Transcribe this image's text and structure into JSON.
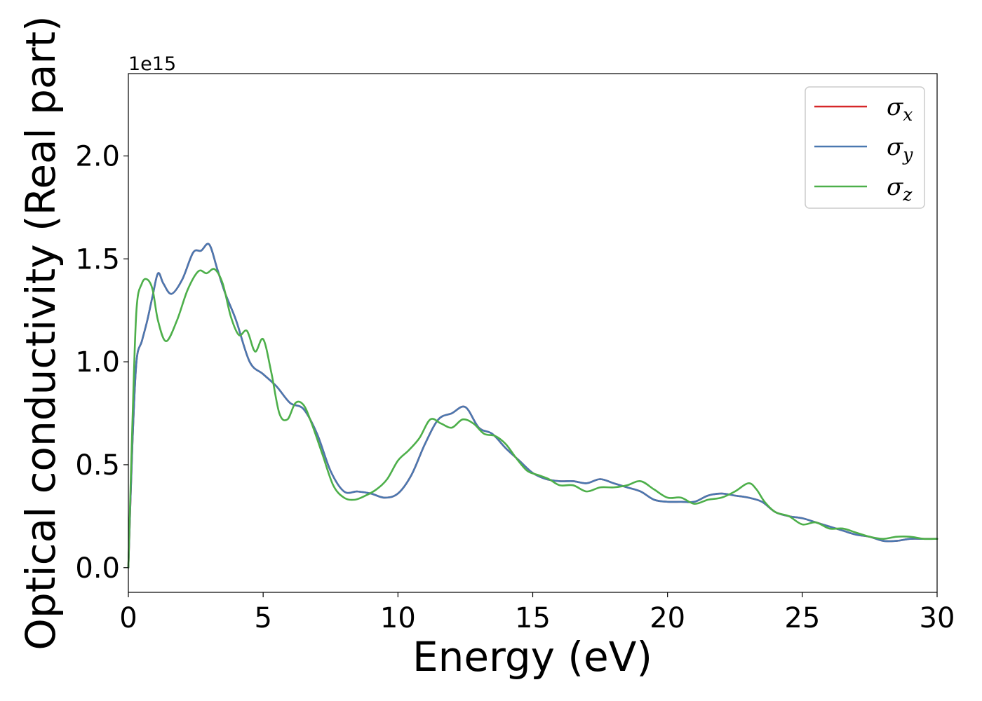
{
  "chart_data": {
    "type": "line",
    "xlabel": "Energy (eV)",
    "ylabel": "Optical conductivity (Real part)",
    "y_offset_text": "1e15",
    "xlim": [
      0,
      30
    ],
    "ylim": [
      -0.12,
      2.4
    ],
    "xticks": [
      0,
      5,
      10,
      15,
      20,
      25,
      30
    ],
    "xtick_labels": [
      "0",
      "5",
      "10",
      "15",
      "20",
      "25",
      "30"
    ],
    "yticks": [
      0.0,
      0.5,
      1.0,
      1.5,
      2.0
    ],
    "ytick_labels": [
      "0.0",
      "0.5",
      "1.0",
      "1.5",
      "2.0"
    ],
    "grid": false,
    "legend_position": "top-right",
    "series": [
      {
        "name": "σ",
        "subscript": "x",
        "color": "#d62728",
        "x": [
          0,
          0.15,
          0.3,
          0.5,
          0.7,
          0.9,
          1.1,
          1.3,
          1.6,
          2.0,
          2.4,
          2.7,
          3.0,
          3.3,
          3.6,
          4.0,
          4.5,
          5.0,
          5.5,
          6.0,
          6.5,
          7.0,
          7.5,
          8.0,
          8.5,
          9.0,
          9.5,
          10.0,
          10.5,
          11.0,
          11.5,
          12.0,
          12.5,
          13.0,
          13.5,
          14.0,
          14.5,
          15.0,
          15.5,
          16.0,
          16.5,
          17.0,
          17.5,
          18.0,
          18.5,
          19.0,
          19.5,
          20.0,
          20.5,
          21.0,
          21.5,
          22.0,
          22.5,
          23.0,
          23.5,
          24.0,
          24.5,
          25.0,
          25.5,
          26.0,
          26.5,
          27.0,
          27.5,
          28.0,
          28.5,
          29.0,
          29.5,
          30.0
        ],
        "y": [
          0.0,
          0.6,
          1.0,
          1.1,
          1.2,
          1.32,
          1.43,
          1.38,
          1.33,
          1.4,
          1.53,
          1.54,
          1.57,
          1.45,
          1.33,
          1.2,
          1.0,
          0.94,
          0.88,
          0.8,
          0.77,
          0.65,
          0.47,
          0.37,
          0.37,
          0.36,
          0.34,
          0.36,
          0.45,
          0.6,
          0.72,
          0.75,
          0.78,
          0.68,
          0.65,
          0.58,
          0.52,
          0.46,
          0.43,
          0.42,
          0.42,
          0.41,
          0.43,
          0.41,
          0.39,
          0.37,
          0.33,
          0.32,
          0.32,
          0.32,
          0.35,
          0.36,
          0.35,
          0.34,
          0.32,
          0.27,
          0.25,
          0.24,
          0.22,
          0.2,
          0.18,
          0.16,
          0.15,
          0.13,
          0.13,
          0.14,
          0.14,
          0.14
        ]
      },
      {
        "name": "σ",
        "subscript": "y",
        "color": "#4a78b0",
        "x": [
          0,
          0.15,
          0.3,
          0.5,
          0.7,
          0.9,
          1.1,
          1.3,
          1.6,
          2.0,
          2.4,
          2.7,
          3.0,
          3.3,
          3.6,
          4.0,
          4.5,
          5.0,
          5.5,
          6.0,
          6.5,
          7.0,
          7.5,
          8.0,
          8.5,
          9.0,
          9.5,
          10.0,
          10.5,
          11.0,
          11.5,
          12.0,
          12.5,
          13.0,
          13.5,
          14.0,
          14.5,
          15.0,
          15.5,
          16.0,
          16.5,
          17.0,
          17.5,
          18.0,
          18.5,
          19.0,
          19.5,
          20.0,
          20.5,
          21.0,
          21.5,
          22.0,
          22.5,
          23.0,
          23.5,
          24.0,
          24.5,
          25.0,
          25.5,
          26.0,
          26.5,
          27.0,
          27.5,
          28.0,
          28.5,
          29.0,
          29.5,
          30.0
        ],
        "y": [
          0.0,
          0.6,
          1.0,
          1.1,
          1.2,
          1.32,
          1.43,
          1.38,
          1.33,
          1.4,
          1.53,
          1.54,
          1.57,
          1.45,
          1.33,
          1.2,
          1.0,
          0.94,
          0.88,
          0.8,
          0.77,
          0.65,
          0.47,
          0.37,
          0.37,
          0.36,
          0.34,
          0.36,
          0.45,
          0.6,
          0.72,
          0.75,
          0.78,
          0.68,
          0.65,
          0.58,
          0.52,
          0.46,
          0.43,
          0.42,
          0.42,
          0.41,
          0.43,
          0.41,
          0.39,
          0.37,
          0.33,
          0.32,
          0.32,
          0.32,
          0.35,
          0.36,
          0.35,
          0.34,
          0.32,
          0.27,
          0.25,
          0.24,
          0.22,
          0.2,
          0.18,
          0.16,
          0.15,
          0.13,
          0.13,
          0.14,
          0.14,
          0.14
        ]
      },
      {
        "name": "σ",
        "subscript": "z",
        "color": "#4daf4a",
        "x": [
          0,
          0.15,
          0.3,
          0.5,
          0.7,
          0.9,
          1.1,
          1.4,
          1.8,
          2.2,
          2.6,
          2.9,
          3.2,
          3.5,
          3.8,
          4.1,
          4.4,
          4.7,
          5.0,
          5.3,
          5.6,
          5.9,
          6.2,
          6.5,
          6.8,
          7.2,
          7.6,
          8.0,
          8.4,
          8.8,
          9.2,
          9.6,
          10.0,
          10.4,
          10.8,
          11.2,
          11.6,
          12.0,
          12.4,
          12.8,
          13.2,
          13.6,
          14.0,
          14.4,
          14.8,
          15.2,
          15.6,
          16.0,
          16.5,
          17.0,
          17.5,
          18.0,
          18.5,
          19.0,
          19.5,
          20.0,
          20.5,
          21.0,
          21.5,
          22.0,
          22.5,
          23.0,
          23.3,
          23.6,
          24.0,
          24.5,
          25.0,
          25.5,
          26.0,
          26.5,
          27.0,
          27.5,
          28.0,
          28.5,
          29.0,
          29.5,
          30.0
        ],
        "y": [
          0.0,
          0.7,
          1.25,
          1.38,
          1.4,
          1.35,
          1.2,
          1.1,
          1.2,
          1.35,
          1.44,
          1.43,
          1.45,
          1.38,
          1.22,
          1.13,
          1.15,
          1.05,
          1.11,
          0.95,
          0.75,
          0.72,
          0.8,
          0.79,
          0.7,
          0.55,
          0.4,
          0.34,
          0.33,
          0.35,
          0.38,
          0.43,
          0.52,
          0.57,
          0.63,
          0.72,
          0.7,
          0.68,
          0.72,
          0.7,
          0.65,
          0.64,
          0.6,
          0.53,
          0.47,
          0.45,
          0.43,
          0.4,
          0.4,
          0.37,
          0.39,
          0.39,
          0.4,
          0.42,
          0.38,
          0.34,
          0.34,
          0.31,
          0.33,
          0.34,
          0.37,
          0.41,
          0.38,
          0.32,
          0.27,
          0.25,
          0.21,
          0.22,
          0.19,
          0.19,
          0.17,
          0.15,
          0.14,
          0.15,
          0.15,
          0.14,
          0.14
        ]
      }
    ]
  }
}
